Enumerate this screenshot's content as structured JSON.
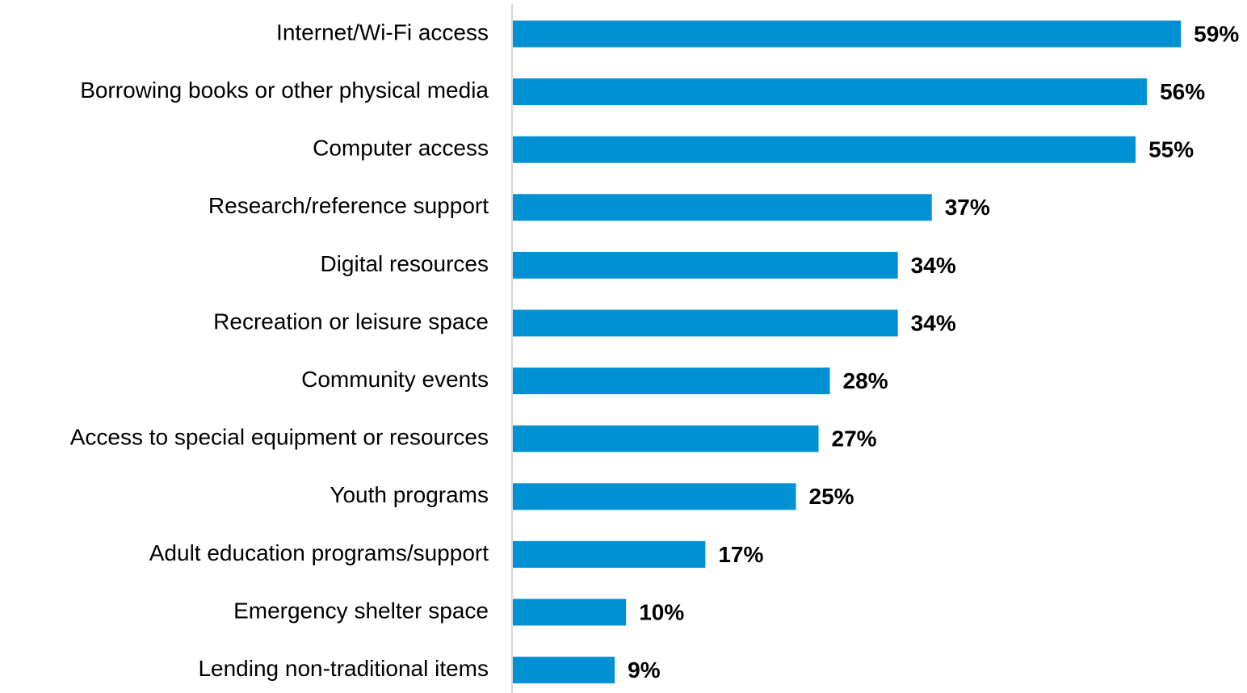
{
  "chart_data": {
    "type": "bar",
    "orientation": "horizontal",
    "categories": [
      "Internet/Wi-Fi access",
      "Borrowing books or other physical media",
      "Computer access",
      "Research/reference support",
      "Digital resources",
      "Recreation or leisure space",
      "Community events",
      "Access to special equipment or resources",
      "Youth programs",
      "Adult education programs/support",
      "Emergency shelter space",
      "Lending non-traditional items"
    ],
    "values": [
      59,
      56,
      55,
      37,
      34,
      34,
      28,
      27,
      25,
      17,
      10,
      9
    ],
    "value_labels": [
      "59%",
      "56%",
      "55%",
      "37%",
      "34%",
      "34%",
      "28%",
      "27%",
      "25%",
      "17%",
      "10%",
      "9%"
    ],
    "color": "#0091d5"
  }
}
